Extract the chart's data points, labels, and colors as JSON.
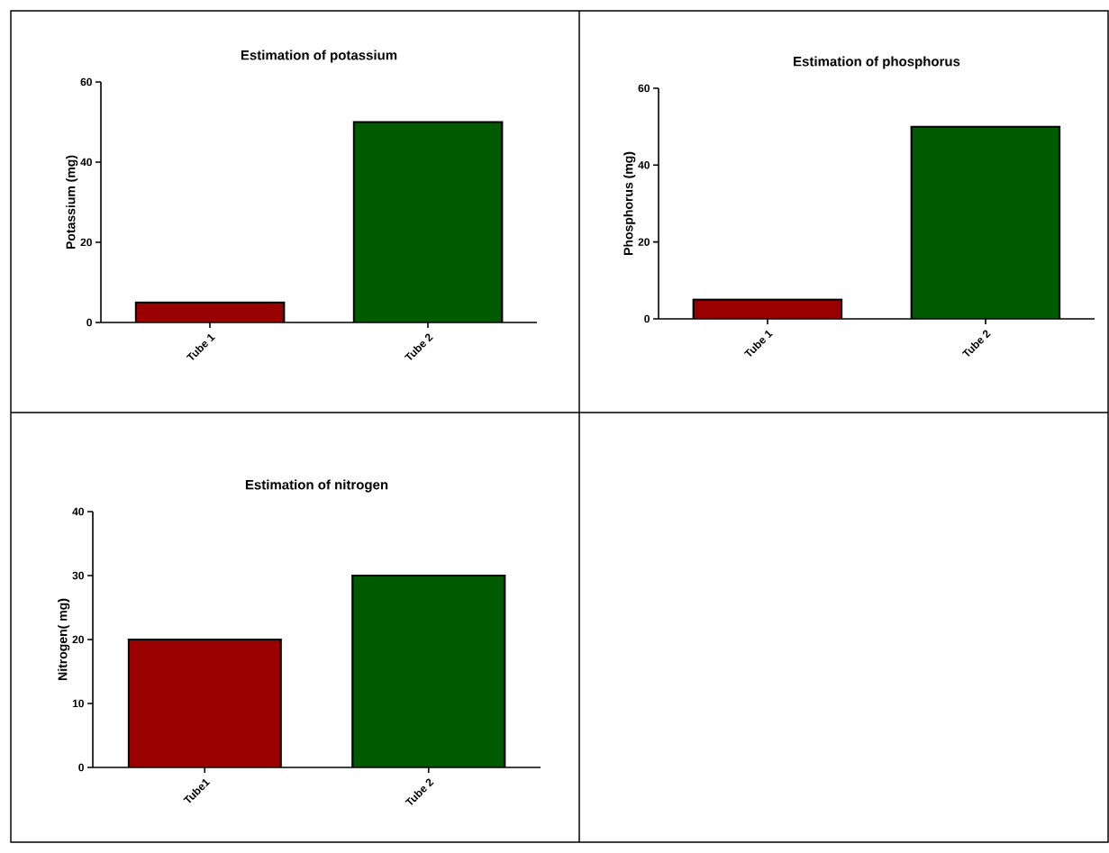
{
  "chart_data": [
    {
      "type": "bar",
      "title": "Estimation of potassium",
      "ylabel": "Potassium (mg)",
      "categories": [
        "Tube 1",
        "Tube 2"
      ],
      "values": [
        5,
        50
      ],
      "colors": [
        "#9a0000",
        "#005a00"
      ],
      "ylim": [
        0,
        60
      ],
      "yticks": [
        0,
        20,
        40,
        60
      ]
    },
    {
      "type": "bar",
      "title": "Estimation of phosphorus",
      "ylabel": "Phosphorus (mg)",
      "categories": [
        "Tube 1",
        "Tube 2"
      ],
      "values": [
        5,
        50
      ],
      "colors": [
        "#9a0000",
        "#005a00"
      ],
      "ylim": [
        0,
        60
      ],
      "yticks": [
        0,
        20,
        40,
        60
      ]
    },
    {
      "type": "bar",
      "title": "Estimation of nitrogen",
      "ylabel": "Nitrogen( mg)",
      "categories": [
        "Tube1",
        "Tube 2"
      ],
      "values": [
        20,
        30
      ],
      "colors": [
        "#9a0000",
        "#005a00"
      ],
      "ylim": [
        0,
        40
      ],
      "yticks": [
        0,
        10,
        20,
        30,
        40
      ]
    }
  ]
}
